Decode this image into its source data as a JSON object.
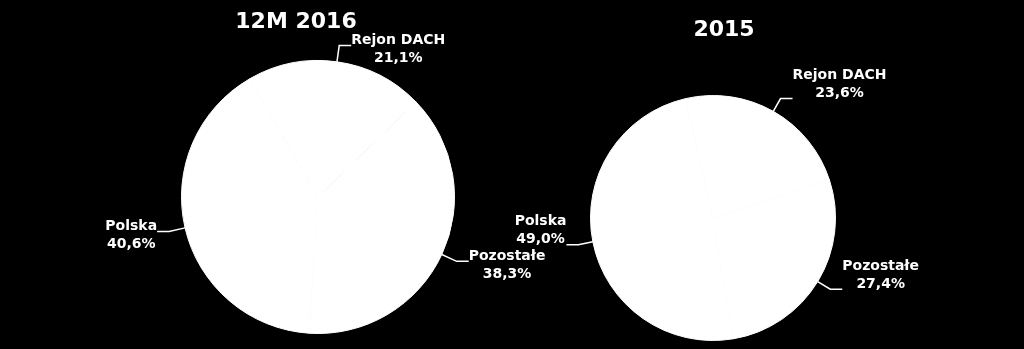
{
  "chart_data": [
    {
      "type": "pie",
      "title": "12M 2016",
      "categories": [
        "Rejon DACH",
        "Pozostałe",
        "Polska"
      ],
      "values": [
        21.1,
        38.3,
        40.6
      ],
      "colors": [
        "#ffffff",
        "#ffffff",
        "#ffffff"
      ],
      "value_labels": [
        "21,1%",
        "38,3%",
        "40,6%"
      ]
    },
    {
      "type": "pie",
      "title": "2015",
      "categories": [
        "Rejon DACH",
        "Pozostałe",
        "Polska"
      ],
      "values": [
        23.6,
        27.4,
        49.0
      ],
      "colors": [
        "#ffffff",
        "#ffffff",
        "#ffffff"
      ],
      "value_labels": [
        "23,6%",
        "27,4%",
        "49,0%"
      ]
    }
  ]
}
